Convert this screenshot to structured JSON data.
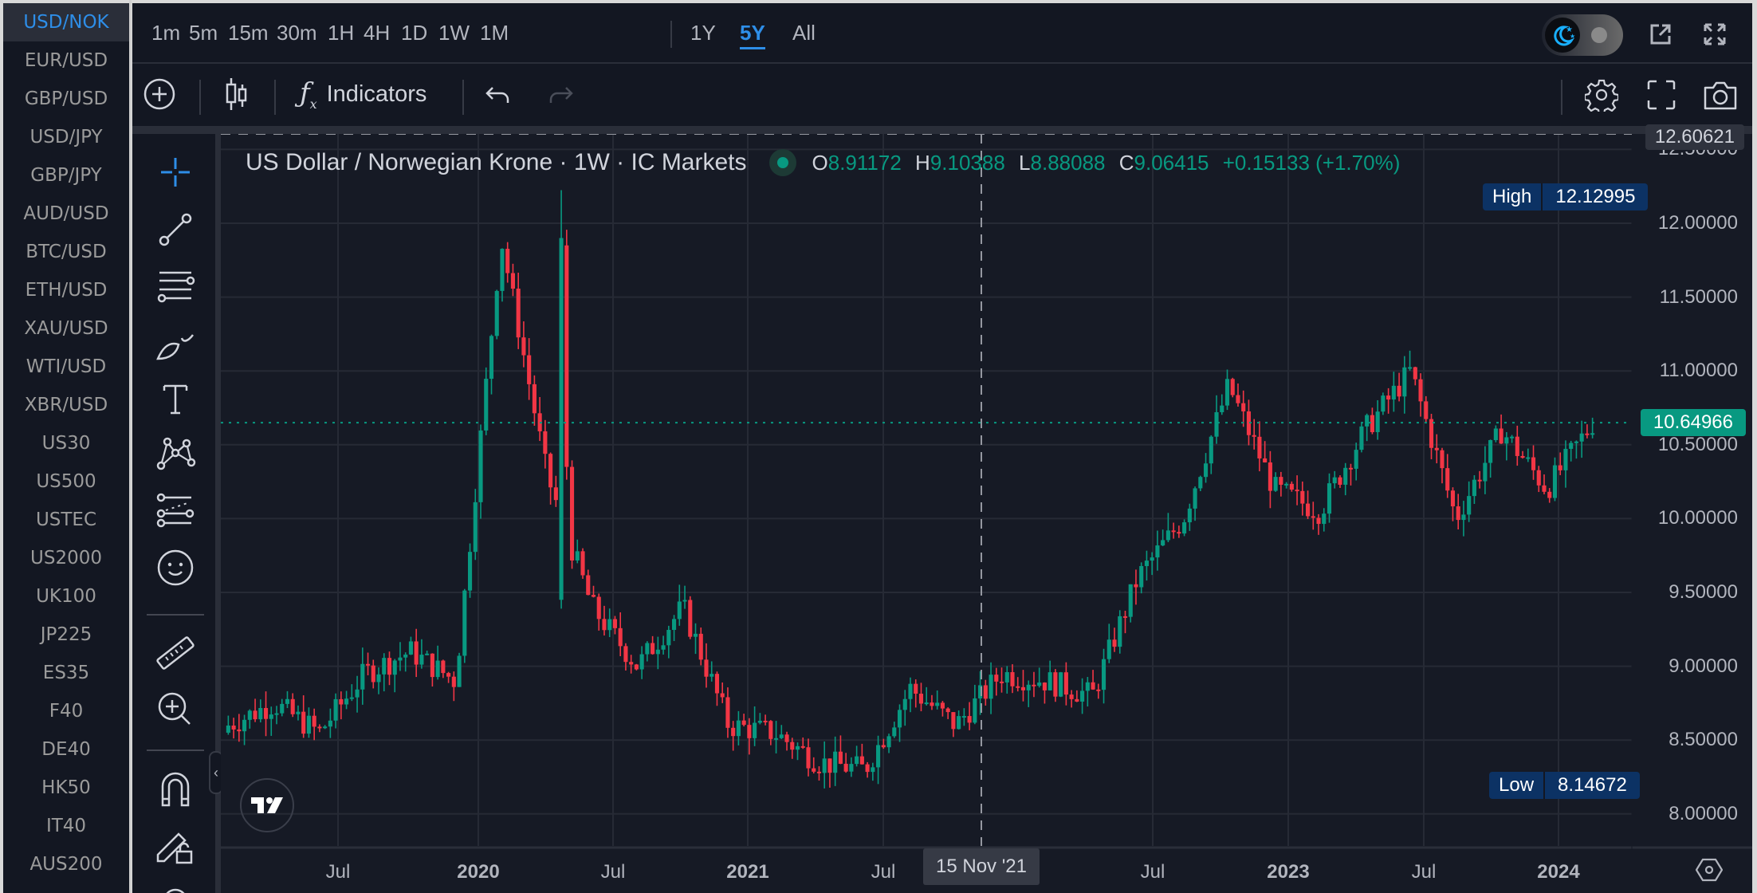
{
  "symbols": {
    "active_index": 0,
    "items": [
      "USD/NOK",
      "EUR/USD",
      "GBP/USD",
      "USD/JPY",
      "GBP/JPY",
      "AUD/USD",
      "BTC/USD",
      "ETH/USD",
      "XAU/USD",
      "WTI/USD",
      "XBR/USD",
      "US30",
      "US500",
      "USTEC",
      "US2000",
      "UK100",
      "JP225",
      "ES35",
      "F40",
      "DE40",
      "HK50",
      "IT40",
      "AUS200"
    ]
  },
  "toolbar": {
    "timeframes": [
      "1m",
      "5m",
      "15m",
      "30m",
      "1H",
      "4H",
      "1D",
      "1W",
      "1M"
    ],
    "ranges": [
      "1Y",
      "5Y",
      "All"
    ],
    "active_range": "5Y",
    "indicators_label": "Indicators",
    "icons": {
      "add": "plus-circle-icon",
      "chart_type": "candlestick-icon",
      "indicators": "function-fx-icon",
      "undo": "undo-icon",
      "redo": "redo-icon",
      "theme": "moon-sun-toggle-icon",
      "popout": "external-link-icon",
      "fullscreen_top": "expand-arrows-icon",
      "settings": "gear-icon",
      "fullscreen": "fullscreen-corners-icon",
      "screenshot": "camera-icon"
    }
  },
  "drawing_tools": [
    "crosshair-icon",
    "trend-line-icon",
    "horizontal-lines-icon",
    "brush-icon",
    "text-icon",
    "pattern-icon",
    "forecast-icon",
    "emoji-icon",
    "ruler-icon",
    "zoom-in-icon",
    "magnet-icon",
    "lock-drawings-icon",
    "eye-icon"
  ],
  "legend": {
    "title": "US Dollar / Norwegian Krone · 1W · IC Markets",
    "o_label": "O",
    "o": "8.91172",
    "h_label": "H",
    "h": "9.10388",
    "l_label": "L",
    "l": "8.88088",
    "c_label": "C",
    "c": "9.06415",
    "change": "+0.15133 (+1.70%)"
  },
  "price_axis": {
    "top_label": "12.60621",
    "ticks": [
      "12.50000",
      "12.00000",
      "11.50000",
      "11.00000",
      "10.50000",
      "10.00000",
      "9.50000",
      "9.00000",
      "8.50000",
      "8.00000"
    ],
    "high_label": "High",
    "high_value": "12.12995",
    "low_label": "Low",
    "low_value": "8.14672",
    "last_price": "10.64966"
  },
  "time_axis": {
    "labels": [
      {
        "text": "Jul",
        "year": false
      },
      {
        "text": "2020",
        "year": true
      },
      {
        "text": "Jul",
        "year": false
      },
      {
        "text": "2021",
        "year": true
      },
      {
        "text": "Jul",
        "year": false
      },
      {
        "text": "Jul",
        "year": false
      },
      {
        "text": "2023",
        "year": true
      },
      {
        "text": "Jul",
        "year": false
      },
      {
        "text": "2024",
        "year": true
      }
    ],
    "crosshair_label": "15 Nov '21"
  },
  "colors": {
    "up": "#089981",
    "down": "#f23645",
    "bg": "#161a25",
    "grid": "#262a35",
    "accent": "#2e8ee8",
    "high_low_tag": "#0c3264"
  },
  "chart_data": {
    "type": "candlestick",
    "title": "US Dollar / Norwegian Krone · 1W · IC Markets",
    "xlabel": "",
    "ylabel": "USD/NOK",
    "ylim": [
      7.8,
      12.65
    ],
    "grid": true,
    "x": [
      "2019-03",
      "2019-05",
      "2019-07",
      "2019-09",
      "2019-11",
      "2020-01",
      "2020-03",
      "2020-04",
      "2020-06",
      "2020-08",
      "2020-10",
      "2020-12",
      "2021-02",
      "2021-04",
      "2021-06",
      "2021-08",
      "2021-10",
      "2021-11",
      "2022-01",
      "2022-03",
      "2022-05",
      "2022-07",
      "2022-09",
      "2022-11",
      "2023-01",
      "2023-03",
      "2023-05",
      "2023-07",
      "2023-09",
      "2023-11",
      "2024-01"
    ],
    "series": [
      {
        "name": "close",
        "values": [
          8.6,
          8.75,
          8.55,
          8.95,
          9.1,
          8.9,
          11.9,
          10.3,
          9.4,
          9.0,
          9.4,
          8.6,
          8.55,
          8.35,
          8.3,
          8.85,
          8.6,
          8.95,
          8.9,
          8.8,
          9.6,
          10.0,
          10.9,
          10.2,
          10.05,
          10.6,
          11.0,
          10.0,
          10.6,
          10.2,
          10.65
        ]
      }
    ],
    "high": 12.12995,
    "low": 8.14672,
    "last": 10.64966,
    "crosshair_date": "15 Nov '21",
    "ohlc_at_crosshair": {
      "open": 8.91172,
      "high": 9.10388,
      "low": 8.88088,
      "close": 9.06415,
      "change": 0.15133,
      "change_pct": 1.7
    }
  }
}
